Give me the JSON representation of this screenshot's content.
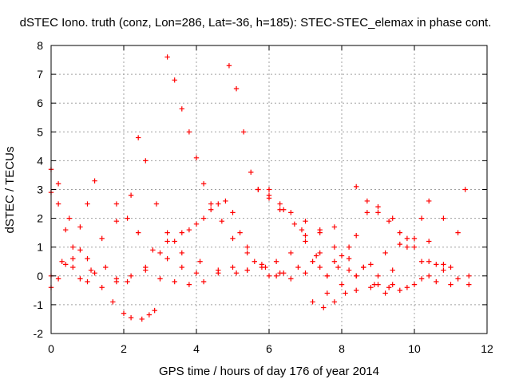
{
  "chart_data": {
    "type": "scatter",
    "title": "dSTEC Iono. truth (conz, Lon=286, Lat=-36, h=185): STEC-STEC_elemax in phase cont.",
    "xlabel": "GPS time / hours of day 176 of year 2014",
    "ylabel": "dSTEC  / TECUs",
    "xlim": [
      0,
      12
    ],
    "ylim": [
      -2,
      8
    ],
    "xticks": [
      0,
      2,
      4,
      6,
      8,
      10,
      12
    ],
    "yticks": [
      -2,
      -1,
      0,
      1,
      2,
      3,
      4,
      5,
      6,
      7,
      8
    ],
    "grid": true,
    "marker": "+",
    "color": "#ff0000",
    "series": [
      {
        "x": [
          0.0,
          0.2,
          0.5,
          0.8,
          1.1,
          1.4,
          1.7,
          2.0,
          2.2,
          2.5,
          2.7,
          2.85
        ],
        "y": [
          3.7,
          3.2,
          2.0,
          0.9,
          0.2,
          -0.4,
          -0.9,
          -1.3,
          -1.45,
          -1.5,
          -1.35,
          -1.2
        ]
      },
      {
        "x": [
          0.0,
          0.2,
          0.4,
          0.6,
          0.8,
          1.0,
          1.2,
          1.5,
          1.8,
          2.1
        ],
        "y": [
          2.9,
          2.5,
          1.6,
          0.6,
          -0.1,
          -0.2,
          0.1,
          0.3,
          -0.1,
          -0.2
        ]
      },
      {
        "x": [
          0.0,
          0.2,
          0.4,
          0.6,
          0.8,
          1.0,
          1.2
        ],
        "y": [
          -0.4,
          -0.1,
          0.4,
          1.0,
          1.7,
          2.5,
          3.3
        ]
      },
      {
        "x": [
          0.0,
          0.3,
          0.6,
          1.0,
          1.4,
          1.8,
          2.2
        ],
        "y": [
          0.0,
          0.5,
          0.3,
          0.6,
          1.3,
          1.9,
          2.8
        ]
      },
      {
        "x": [
          1.8,
          2.1,
          2.4,
          2.8,
          3.2,
          3.6,
          4.0
        ],
        "y": [
          2.5,
          2.0,
          1.5,
          0.9,
          0.6,
          0.3,
          0.1
        ]
      },
      {
        "x": [
          2.4,
          2.6,
          2.9,
          3.2,
          3.6,
          4.1,
          4.6,
          5.1,
          5.4
        ],
        "y": [
          4.8,
          4.0,
          2.5,
          1.5,
          0.8,
          0.5,
          0.2,
          0.1,
          0.2
        ]
      },
      {
        "x": [
          3.2,
          3.4,
          3.6,
          3.8,
          4.0,
          4.2,
          4.4,
          4.7,
          5.0,
          5.4,
          5.9,
          6.3
        ],
        "y": [
          7.6,
          6.8,
          5.8,
          5.0,
          4.1,
          3.2,
          2.5,
          1.9,
          1.3,
          0.8,
          0.3,
          0.1
        ]
      },
      {
        "x": [
          4.9,
          5.1,
          5.3,
          5.5,
          5.7,
          6.0,
          6.4,
          6.9,
          7.4,
          7.9,
          8.4,
          8.9,
          9.3
        ],
        "y": [
          7.3,
          6.5,
          5.0,
          3.6,
          3.0,
          2.8,
          2.3,
          1.6,
          0.8,
          0.3,
          0.0,
          -0.3,
          -0.4
        ]
      },
      {
        "x": [
          5.7,
          6.0,
          6.3,
          6.7,
          7.0,
          7.3,
          7.6
        ],
        "y": [
          3.0,
          2.7,
          2.3,
          1.8,
          1.4,
          0.7,
          0.0
        ]
      },
      {
        "x": [
          6.0,
          6.3,
          6.6,
          7.0,
          7.4,
          7.8,
          8.2,
          8.6,
          9.0,
          9.4,
          9.8,
          10.2,
          10.6,
          11.0,
          11.5
        ],
        "y": [
          3.0,
          2.5,
          2.2,
          1.9,
          1.6,
          1.0,
          0.6,
          0.3,
          0.0,
          -0.3,
          -0.4,
          -0.1,
          0.4,
          0.3,
          0.0
        ]
      },
      {
        "x": [
          3.2,
          3.6,
          4.0,
          4.4,
          4.8,
          5.2,
          5.6,
          6.0,
          6.4,
          6.8,
          7.2
        ],
        "y": [
          1.2,
          1.5,
          1.8,
          2.3,
          2.6,
          1.5,
          0.5,
          0.0,
          0.1,
          0.3,
          0.5
        ]
      },
      {
        "x": [
          1.8,
          2.2,
          2.6,
          3.0,
          3.4,
          3.8,
          4.2,
          4.6,
          5.0,
          5.4
        ],
        "y": [
          -0.2,
          0.0,
          0.3,
          0.8,
          1.2,
          1.6,
          2.0,
          2.5,
          2.2,
          1.0
        ]
      },
      {
        "x": [
          5.8,
          6.2,
          6.6,
          7.0,
          7.4,
          7.8,
          8.2,
          8.6,
          9.0,
          9.4,
          9.8,
          10.2,
          10.4
        ],
        "y": [
          0.3,
          0.5,
          0.8,
          1.2,
          1.5,
          1.7,
          1.0,
          0.3,
          -0.3,
          0.2,
          1.0,
          2.0,
          2.6
        ]
      },
      {
        "x": [
          7.2,
          7.5,
          7.8,
          8.1,
          8.4,
          8.8,
          9.2,
          9.6,
          10.0,
          10.4,
          10.8,
          11.2,
          11.4
        ],
        "y": [
          -0.9,
          -1.1,
          -0.9,
          -0.6,
          -0.5,
          -0.4,
          -0.6,
          -0.5,
          -0.3,
          0.0,
          0.4,
          1.5,
          3.0
        ]
      },
      {
        "x": [
          7.6,
          8.0,
          8.4,
          8.7,
          9.0,
          9.4,
          9.8,
          10.2,
          10.6,
          11.0
        ],
        "y": [
          0.0,
          0.7,
          1.4,
          2.2,
          2.4,
          2.0,
          1.3,
          0.5,
          -0.2,
          -0.3
        ]
      },
      {
        "x": [
          8.4,
          8.7,
          9.0,
          9.3,
          9.6,
          10.0,
          10.4,
          10.8,
          11.2,
          11.5
        ],
        "y": [
          3.1,
          2.6,
          2.2,
          1.9,
          1.5,
          1.0,
          0.5,
          0.2,
          -0.1,
          -0.3
        ]
      },
      {
        "x": [
          7.6,
          8.0,
          8.4,
          8.8,
          9.2,
          9.6,
          10.0,
          10.4,
          10.8
        ],
        "y": [
          -0.6,
          -0.3,
          0.0,
          0.4,
          0.8,
          1.1,
          1.3,
          1.2,
          2.0
        ]
      },
      {
        "x": [
          5.0,
          5.4,
          5.8,
          6.2,
          6.6,
          7.0,
          7.4,
          7.8,
          8.2
        ],
        "y": [
          0.3,
          0.2,
          0.4,
          0.0,
          -0.1,
          0.1,
          0.3,
          0.5,
          0.2
        ]
      },
      {
        "x": [
          2.6,
          3.0,
          3.4,
          3.8,
          4.2,
          4.6
        ],
        "y": [
          0.2,
          -0.1,
          -0.2,
          -0.3,
          -0.2,
          0.1
        ]
      }
    ]
  }
}
